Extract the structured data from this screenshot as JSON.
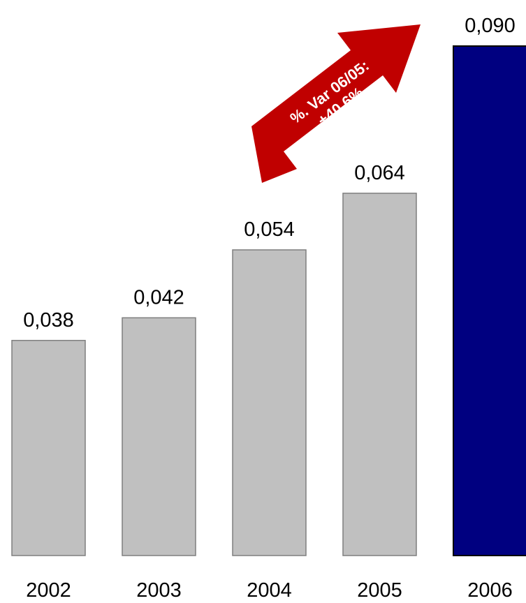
{
  "chart_data": {
    "type": "bar",
    "categories": [
      "2002",
      "2003",
      "2004",
      "2005",
      "2006"
    ],
    "values": [
      0.038,
      0.042,
      0.054,
      0.064,
      0.09
    ],
    "value_labels": [
      "0,038",
      "0,042",
      "0,054",
      "0,064",
      "0,090"
    ],
    "title": "",
    "xlabel": "",
    "ylabel": "",
    "ylim": [
      0,
      0.09
    ],
    "grid": false,
    "legend": "none",
    "colors": {
      "default_bar": "#c0c0c0",
      "highlight_bar": "#000080",
      "bar_edge": "#7f7f7f",
      "callout": "#c00000"
    },
    "highlight_index": 4
  },
  "callout": {
    "line1": "%. Var 06/05:",
    "line2": "+40,6%"
  }
}
